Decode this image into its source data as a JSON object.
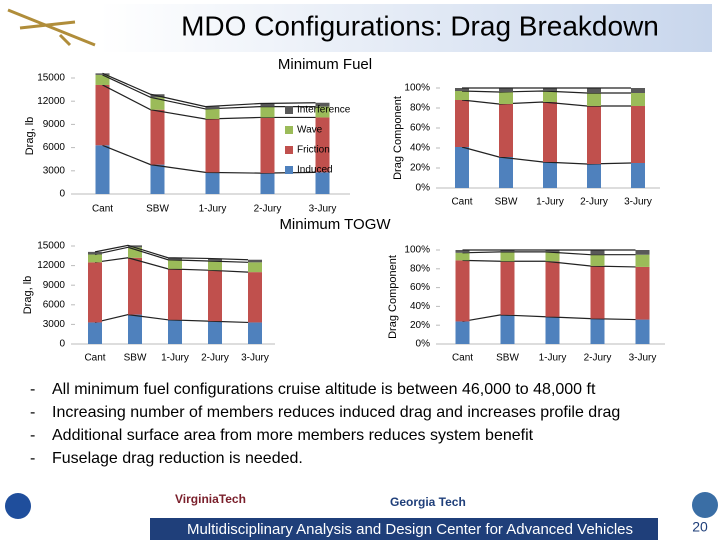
{
  "header": {
    "title": "MDO Configurations: Drag Breakdown"
  },
  "chart_data": [
    {
      "type": "stacked_bar",
      "title": "Minimum Fuel",
      "y_label": "Drag, lb",
      "categories": [
        "Cant",
        "SBW",
        "1-Jury",
        "2-Jury",
        "3-Jury"
      ],
      "series": [
        {
          "name": "Induced",
          "color": "#4f81bd",
          "values": [
            6300,
            3800,
            2800,
            2700,
            2800
          ]
        },
        {
          "name": "Friction",
          "color": "#c0504d",
          "values": [
            7800,
            7100,
            6900,
            7200,
            7100
          ]
        },
        {
          "name": "Wave",
          "color": "#9bbb59",
          "values": [
            1300,
            1600,
            1300,
            1400,
            1400
          ]
        },
        {
          "name": "Interference",
          "color": "#595959",
          "values": [
            200,
            400,
            300,
            400,
            500
          ]
        }
      ],
      "ylim": [
        0,
        15000
      ],
      "yticks": [
        0,
        3000,
        6000,
        9000,
        12000,
        15000
      ],
      "legend": "right"
    },
    {
      "type": "stacked_bar",
      "y_label": "Drag Component",
      "categories": [
        "Cant",
        "SBW",
        "1-Jury",
        "2-Jury",
        "3-Jury"
      ],
      "series": [
        {
          "color": "#4f81bd",
          "values": [
            41,
            31,
            26,
            24,
            25
          ]
        },
        {
          "color": "#c0504d",
          "values": [
            47,
            53,
            60,
            58,
            57
          ]
        },
        {
          "color": "#9bbb59",
          "values": [
            9,
            12,
            11,
            13,
            13
          ]
        },
        {
          "color": "#595959",
          "values": [
            3,
            4,
            3,
            5,
            5
          ]
        }
      ],
      "ylim": [
        0,
        100
      ],
      "yticks": [
        {
          "value": 0,
          "label": "0%"
        },
        {
          "value": 20,
          "label": "20%"
        },
        {
          "value": 40,
          "label": "40%"
        },
        {
          "value": 60,
          "label": "60%"
        },
        {
          "value": 80,
          "label": "80%"
        },
        {
          "value": 100,
          "label": "100%"
        }
      ]
    },
    {
      "type": "stacked_bar",
      "title": "Minimum TOGW",
      "y_label": "Drag, lb",
      "categories": [
        "Cant",
        "SBW",
        "1-Jury",
        "2-Jury",
        "3-Jury"
      ],
      "series": [
        {
          "color": "#4f81bd",
          "values": [
            3300,
            4500,
            3700,
            3500,
            3300
          ]
        },
        {
          "color": "#c0504d",
          "values": [
            9200,
            8700,
            7800,
            7800,
            7700
          ]
        },
        {
          "color": "#9bbb59",
          "values": [
            1200,
            1600,
            1400,
            1400,
            1500
          ]
        },
        {
          "color": "#595959",
          "values": [
            400,
            300,
            300,
            400,
            400
          ]
        }
      ],
      "ylim": [
        0,
        15000
      ],
      "yticks": [
        0,
        3000,
        6000,
        9000,
        12000,
        15000
      ]
    },
    {
      "type": "stacked_bar",
      "y_label": "Drag Component",
      "categories": [
        "Cant",
        "SBW",
        "1-Jury",
        "2-Jury",
        "3-Jury"
      ],
      "series": [
        {
          "color": "#4f81bd",
          "values": [
            24,
            31,
            29,
            27,
            26
          ]
        },
        {
          "color": "#c0504d",
          "values": [
            65,
            57,
            59,
            56,
            56
          ]
        },
        {
          "color": "#9bbb59",
          "values": [
            8,
            10,
            10,
            12,
            13
          ]
        },
        {
          "color": "#595959",
          "values": [
            3,
            2,
            2,
            5,
            5
          ]
        }
      ],
      "ylim": [
        0,
        100
      ],
      "yticks": [
        {
          "value": 0,
          "label": "0%"
        },
        {
          "value": 20,
          "label": "20%"
        },
        {
          "value": 40,
          "label": "40%"
        },
        {
          "value": 60,
          "label": "60%"
        },
        {
          "value": 80,
          "label": "80%"
        },
        {
          "value": 100,
          "label": "100%"
        }
      ]
    }
  ],
  "bullets": [
    "All minimum fuel configurations cruise altitude is between 46,000 to 48,000 ft",
    "Increasing number of members reduces induced drag and increases profile drag",
    "Additional surface area from more members reduces system benefit",
    "Fuselage drag reduction is needed."
  ],
  "bullet_marker": "-",
  "logos": [
    "VirginiaTech",
    "Georgia Tech"
  ],
  "footer": {
    "text": "Multidisciplinary Analysis and Design Center for Advanced Vehicles",
    "page": "20"
  }
}
